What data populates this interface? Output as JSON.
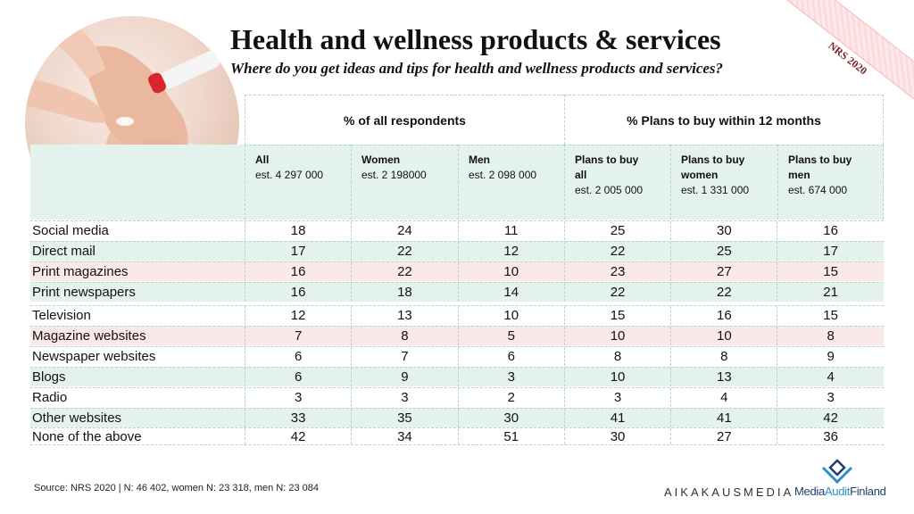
{
  "header": {
    "title": "Health and wellness products & services",
    "subtitle": "Where do you get ideas and tips for health and wellness products and services?",
    "badge": "NRS 2020"
  },
  "table": {
    "group_headers": [
      "% of all respondents",
      "% Plans to buy within 12 months"
    ],
    "columns": [
      {
        "line1": "All",
        "line2": "",
        "line3": "est. 4 297 000"
      },
      {
        "line1": "Women",
        "line2": "",
        "line3": "est. 2 198000"
      },
      {
        "line1": "Men",
        "line2": "",
        "line3": "est. 2 098 000"
      },
      {
        "line1": "Plans to buy",
        "line2": "all",
        "line3": "est. 2 005 000"
      },
      {
        "line1": "Plans to buy",
        "line2": "women",
        "line3": "est. 1 331 000"
      },
      {
        "line1": "Plans to buy",
        "line2": "men",
        "line3": "est. 674 000"
      }
    ],
    "rows": [
      {
        "label": "Social media",
        "values": [
          "18",
          "24",
          "11",
          "25",
          "30",
          "16"
        ]
      },
      {
        "label": "Direct mail",
        "values": [
          "17",
          "22",
          "12",
          "22",
          "25",
          "17"
        ]
      },
      {
        "label": "Print magazines",
        "values": [
          "16",
          "22",
          "10",
          "23",
          "27",
          "15"
        ]
      },
      {
        "label": "Print newspapers",
        "values": [
          "16",
          "18",
          "14",
          "22",
          "22",
          "21"
        ]
      },
      {
        "label": "Television",
        "values": [
          "12",
          "13",
          "10",
          "15",
          "16",
          "15"
        ]
      },
      {
        "label": "Magazine websites",
        "values": [
          "7",
          "8",
          "5",
          "10",
          "10",
          "8"
        ]
      },
      {
        "label": "Newspaper websites",
        "values": [
          "6",
          "7",
          "6",
          "8",
          "8",
          "9"
        ]
      },
      {
        "label": "Blogs",
        "values": [
          "6",
          "9",
          "3",
          "10",
          "13",
          "4"
        ]
      },
      {
        "label": "Radio",
        "values": [
          "3",
          "3",
          "2",
          "3",
          "4",
          "3"
        ]
      },
      {
        "label": "Other websites",
        "values": [
          "33",
          "35",
          "30",
          "41",
          "41",
          "42"
        ]
      },
      {
        "label": "None of the above",
        "values": [
          "42",
          "34",
          "51",
          "30",
          "27",
          "36"
        ]
      }
    ]
  },
  "footer": {
    "source": "Source: NRS 2020 | N: 46 402, women N: 23 318, men N: 23 084",
    "brand1": "AIKAKAUSMEDIA",
    "brand2_part1": "Media",
    "brand2_part2": "Audit",
    "brand2_part3": "Finland"
  },
  "colors": {
    "accent_green": "#e4f2ee",
    "accent_pink": "#fbe9e9",
    "brand_blue": "#2a8fc4"
  }
}
